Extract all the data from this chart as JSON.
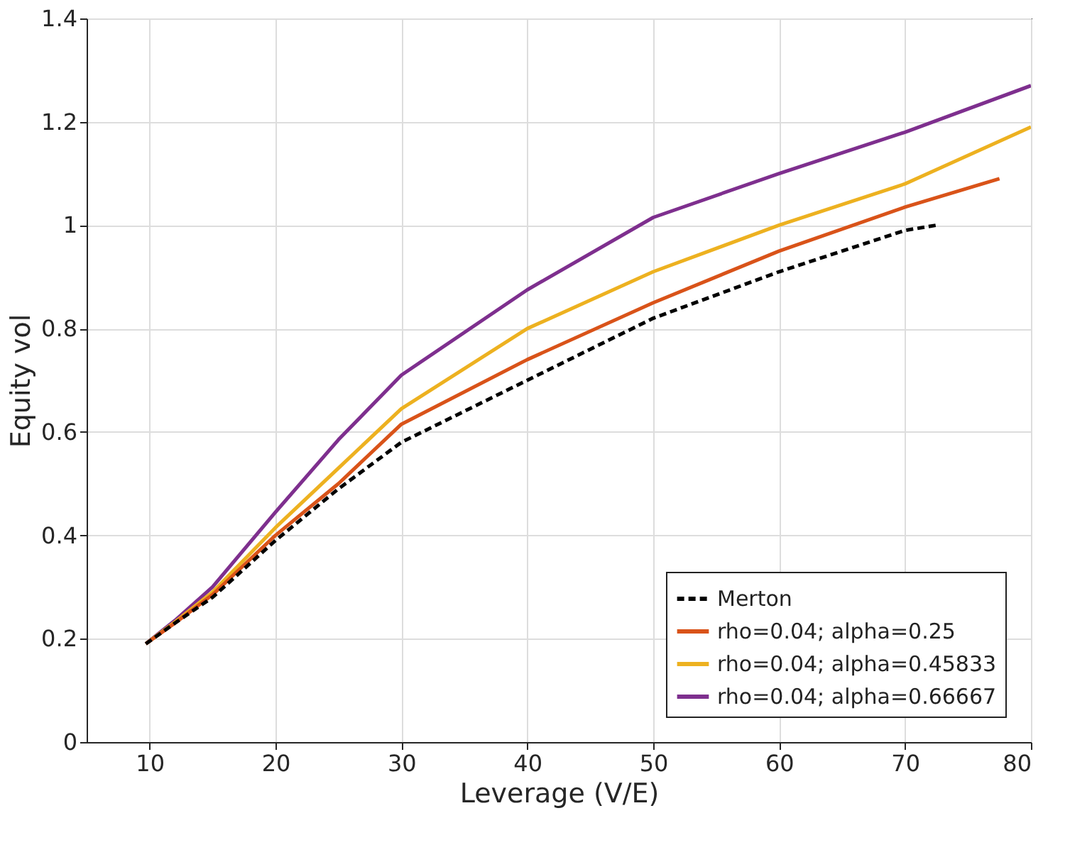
{
  "chart_data": {
    "type": "line",
    "xlabel": "Leverage (V/E)",
    "ylabel": "Equity vol",
    "xlim": [
      5,
      80
    ],
    "ylim": [
      0,
      1.4
    ],
    "xticks": [
      10,
      20,
      30,
      40,
      50,
      60,
      70,
      80
    ],
    "yticks": [
      0,
      0.2,
      0.4,
      0.6,
      0.8,
      1,
      1.2,
      1.4
    ],
    "grid": true,
    "legend": "bottom right",
    "series": [
      {
        "name": "Merton",
        "color": "#000000",
        "line_style": "dashed",
        "x": [
          9.7,
          12,
          15,
          20,
          25,
          30,
          40,
          50,
          60,
          70,
          72.5
        ],
        "values": [
          0.19,
          0.23,
          0.28,
          0.39,
          0.49,
          0.58,
          0.7,
          0.82,
          0.91,
          0.99,
          1.0
        ]
      },
      {
        "name": "rho=0.04; alpha=0.25",
        "color": "#d95319",
        "line_style": "solid",
        "x": [
          9.7,
          12,
          15,
          20,
          25,
          30,
          40,
          50,
          60,
          70,
          77.5
        ],
        "values": [
          0.19,
          0.23,
          0.285,
          0.4,
          0.5,
          0.615,
          0.74,
          0.85,
          0.95,
          1.035,
          1.09
        ]
      },
      {
        "name": "rho=0.04; alpha=0.45833",
        "color": "#edb120",
        "line_style": "solid",
        "x": [
          9.7,
          12,
          15,
          20,
          25,
          30,
          40,
          50,
          60,
          70,
          80
        ],
        "values": [
          0.19,
          0.232,
          0.29,
          0.415,
          0.53,
          0.645,
          0.8,
          0.91,
          1.0,
          1.08,
          1.19
        ]
      },
      {
        "name": "rho=0.04; alpha=0.66667",
        "color": "#7e2f8e",
        "line_style": "solid",
        "x": [
          9.7,
          12,
          15,
          20,
          25,
          30,
          40,
          50,
          60,
          70,
          80
        ],
        "values": [
          0.19,
          0.235,
          0.3,
          0.445,
          0.585,
          0.71,
          0.875,
          1.015,
          1.1,
          1.18,
          1.27
        ]
      }
    ]
  }
}
